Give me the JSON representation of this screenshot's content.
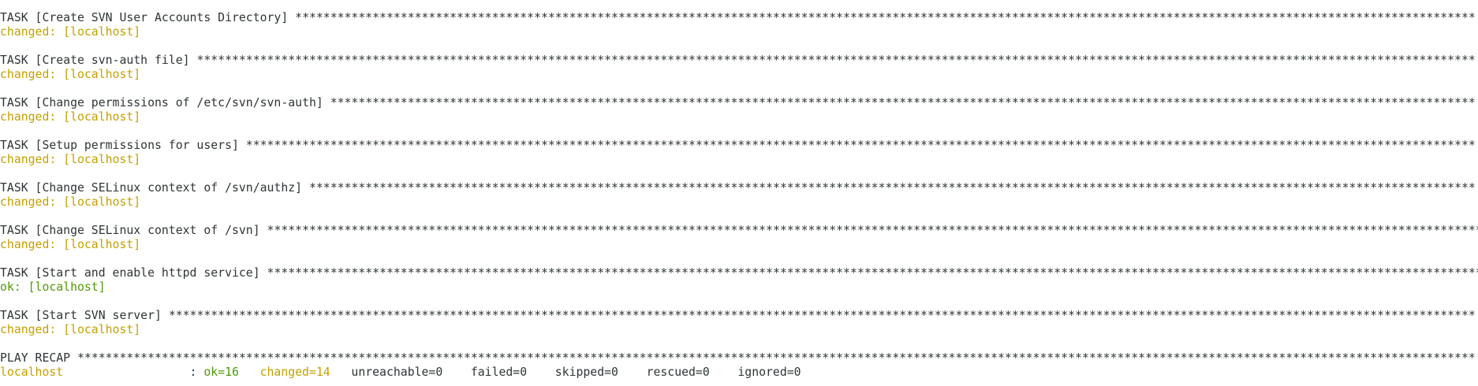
{
  "tasks": [
    {
      "header": "TASK [Create SVN User Accounts Directory]",
      "stars": "************************************************************************************************************************************************************************",
      "status": "changed: [localhost]",
      "kind": "changed"
    },
    {
      "header": "TASK [Create svn-auth file]",
      "stars": "**************************************************************************************************************************************************************************************",
      "status": "changed: [localhost]",
      "kind": "changed"
    },
    {
      "header": "TASK [Change permissions of /etc/svn/svn-auth]",
      "stars": "*******************************************************************************************************************************************************************",
      "status": "changed: [localhost]",
      "kind": "changed"
    },
    {
      "header": "TASK [Setup permissions for users]",
      "stars": "*******************************************************************************************************************************************************************************",
      "status": "changed: [localhost]",
      "kind": "changed"
    },
    {
      "header": "TASK [Change SELinux context of /svn/authz]",
      "stars": "**********************************************************************************************************************************************************************",
      "status": "changed: [localhost]",
      "kind": "changed"
    },
    {
      "header": "TASK [Change SELinux context of /svn]",
      "stars": "************************************************************************************************************************************************************************************",
      "status": "changed: [localhost]",
      "kind": "changed"
    },
    {
      "header": "TASK [Start and enable httpd service]",
      "stars": "************************************************************************************************************************************************************************************",
      "status": "ok: [localhost]",
      "kind": "ok"
    },
    {
      "header": "TASK [Start SVN server]",
      "stars": "******************************************************************************************************************************************************************************************",
      "status": "changed: [localhost]",
      "kind": "changed"
    }
  ],
  "recap": {
    "header": "PLAY RECAP",
    "stars": "*******************************************************************************************************************************************************************************************************",
    "host": "localhost",
    "sep": ":",
    "ok": "ok=16",
    "changed": "changed=14",
    "unreachable": "unreachable=0",
    "failed": "failed=0",
    "skipped": "skipped=0",
    "rescued": "rescued=0",
    "ignored": "ignored=0"
  }
}
